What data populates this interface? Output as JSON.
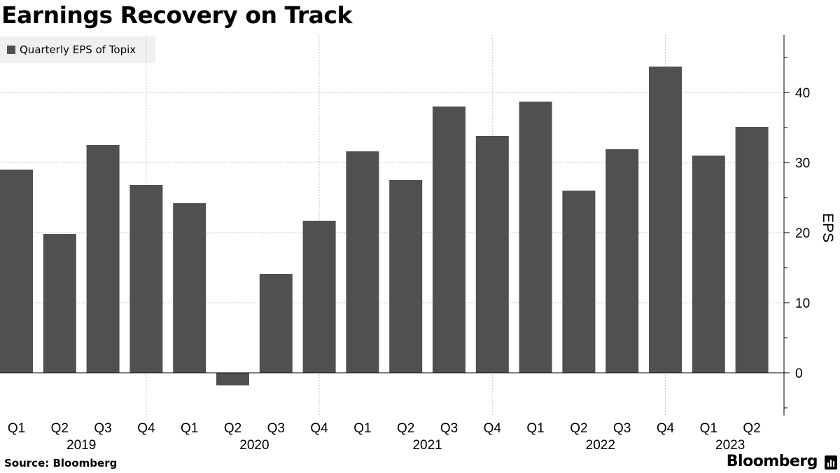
{
  "title": "Earnings Recovery on Track",
  "source": "Source: Bloomberg",
  "brand": "Bloomberg",
  "chart_data": {
    "type": "bar",
    "categories": [
      "Q1",
      "Q2",
      "Q3",
      "Q4",
      "Q1",
      "Q2",
      "Q3",
      "Q4",
      "Q1",
      "Q2",
      "Q3",
      "Q4",
      "Q1",
      "Q2",
      "Q3",
      "Q4",
      "Q1",
      "Q2"
    ],
    "years": [
      {
        "label": "2019",
        "quarters": 4
      },
      {
        "label": "2020",
        "quarters": 4
      },
      {
        "label": "2021",
        "quarters": 4
      },
      {
        "label": "2022",
        "quarters": 4
      },
      {
        "label": "2023",
        "quarters": 2
      }
    ],
    "series": [
      {
        "name": "Quarterly EPS of Topix",
        "color": "#505050",
        "values": [
          29.0,
          19.8,
          32.5,
          26.8,
          24.2,
          -1.8,
          14.1,
          21.7,
          31.6,
          27.5,
          38.0,
          33.8,
          38.7,
          26.0,
          31.9,
          43.7,
          31.0,
          35.1
        ]
      }
    ],
    "ylabel": "EPS",
    "yticks": [
      0,
      10,
      20,
      30,
      40
    ],
    "ylim": [
      -6,
      48
    ],
    "y_axis_side": "right",
    "grid": true,
    "legend_position": "top-left"
  }
}
